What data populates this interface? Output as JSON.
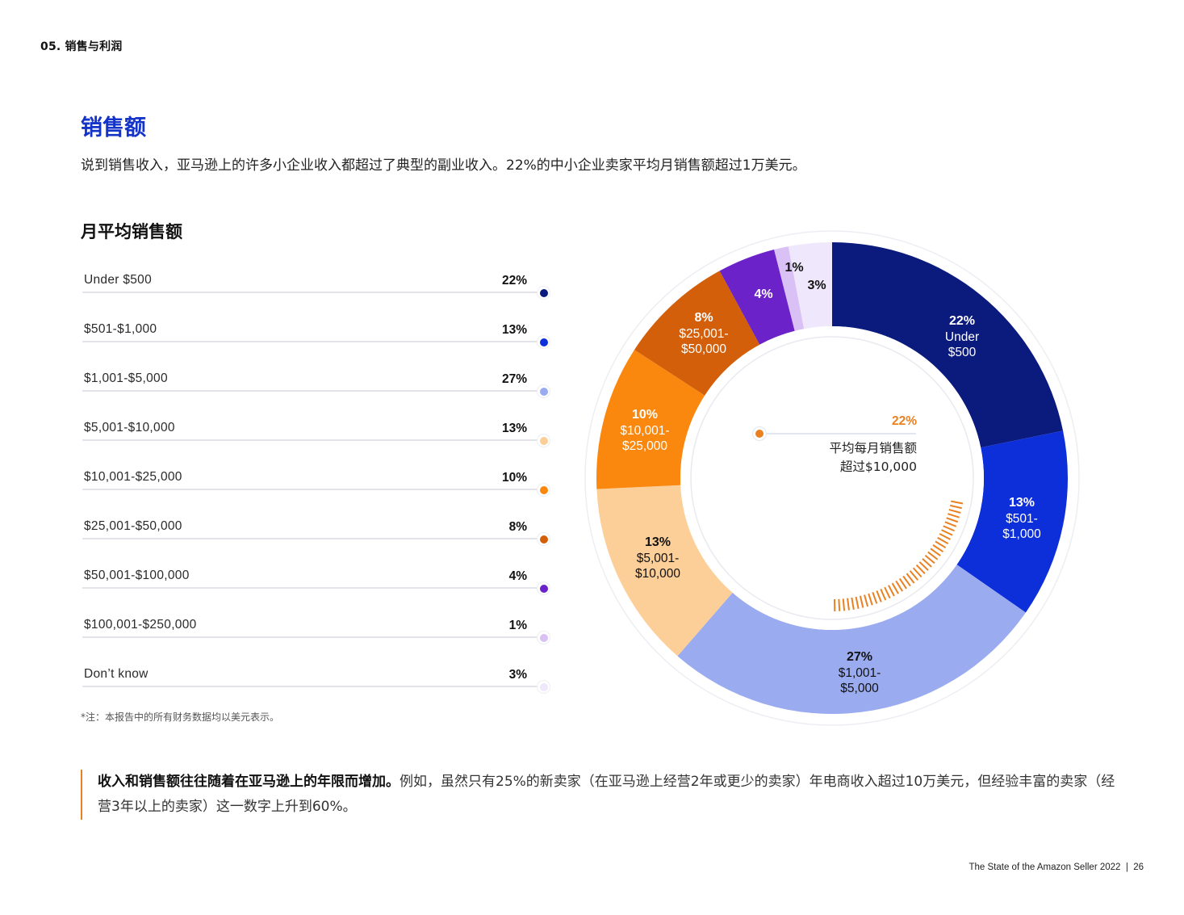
{
  "header": {
    "section_label": "05. 销售与利润"
  },
  "page": {
    "title": "销售额",
    "intro": "说到销售收入，亚马逊上的许多小企业收入都超过了典型的副业收入。22%的中小企业卖家平均月销售额超过1万美元。",
    "chart_title": "月平均销售额",
    "footnote": "*注：本报告中的所有财务数据均以美元表示。"
  },
  "legend": [
    {
      "label": "Under $500",
      "value": "22%",
      "color": "#0b1a7d"
    },
    {
      "label": "$501-$1,000",
      "value": "13%",
      "color": "#0d2fd9"
    },
    {
      "label": "$1,001-$5,000",
      "value": "27%",
      "color": "#9aabf0"
    },
    {
      "label": "$5,001-$10,000",
      "value": "13%",
      "color": "#fdcf98"
    },
    {
      "label": "$10,001-$25,000",
      "value": "10%",
      "color": "#fb880e"
    },
    {
      "label": "$25,001-$50,000",
      "value": "8%",
      "color": "#d45f0a"
    },
    {
      "label": "$50,001-$100,000",
      "value": "4%",
      "color": "#6b22c8"
    },
    {
      "label": "$100,001-$250,000",
      "value": "1%",
      "color": "#d9c0f5"
    },
    {
      "label": "Don’t know",
      "value": "3%",
      "color": "#efe7fb"
    }
  ],
  "center": {
    "pct": "22%",
    "line1": "平均每月销售额",
    "line2": "超过$10,000",
    "accent": "#ea8120"
  },
  "callout": {
    "bold": "收入和销售额往往随着在亚马逊上的年限而增加。",
    "text": "例如，虽然只有25%的新卖家（在亚马逊上经营2年或更少的卖家）年电商收入超过10万美元，但经验丰富的卖家（经营3年以上的卖家）这一数字上升到60%。"
  },
  "footer": {
    "text": "The State of the Amazon Seller 2022  |  26"
  },
  "chart_data": {
    "type": "pie",
    "subtype": "donut",
    "title": "月平均销售额",
    "categories": [
      "Under $500",
      "$501-$1,000",
      "$1,001-$5,000",
      "$5,001-$10,000",
      "$10,001-$25,000",
      "$25,001-$50,000",
      "$50,001-$100,000",
      "$100,001-$250,000",
      "Don’t know"
    ],
    "values": [
      22,
      13,
      27,
      13,
      10,
      8,
      4,
      1,
      3
    ],
    "unit": "%",
    "colors": [
      "#0b1a7d",
      "#0d2fd9",
      "#9aabf0",
      "#fdcf98",
      "#fb880e",
      "#d45f0a",
      "#6b22c8",
      "#d9c0f5",
      "#efe7fb"
    ],
    "segment_labels": [
      {
        "pct": "22%",
        "lines": [
          "Under",
          "$500"
        ],
        "text_color": "#ffffff"
      },
      {
        "pct": "13%",
        "lines": [
          "$501-",
          "$1,000"
        ],
        "text_color": "#ffffff"
      },
      {
        "pct": "27%",
        "lines": [
          "$1,001-",
          "$5,000"
        ],
        "text_color": "#111111"
      },
      {
        "pct": "13%",
        "lines": [
          "$5,001-",
          "$10,000"
        ],
        "text_color": "#111111"
      },
      {
        "pct": "10%",
        "lines": [
          "$10,001-",
          "$25,000"
        ],
        "text_color": "#ffffff"
      },
      {
        "pct": "8%",
        "lines": [
          "$25,001-",
          "$50,000"
        ],
        "text_color": "#ffffff"
      },
      {
        "pct": "4%",
        "lines": [],
        "text_color": "#ffffff"
      },
      {
        "pct": "1%",
        "lines": [],
        "text_color": "#111111"
      },
      {
        "pct": "3%",
        "lines": [],
        "text_color": "#111111"
      }
    ],
    "start_angle": "12 o'clock, clockwise",
    "annotation": "22% 平均每月销售额超过$10,000",
    "legend_position": "left"
  }
}
